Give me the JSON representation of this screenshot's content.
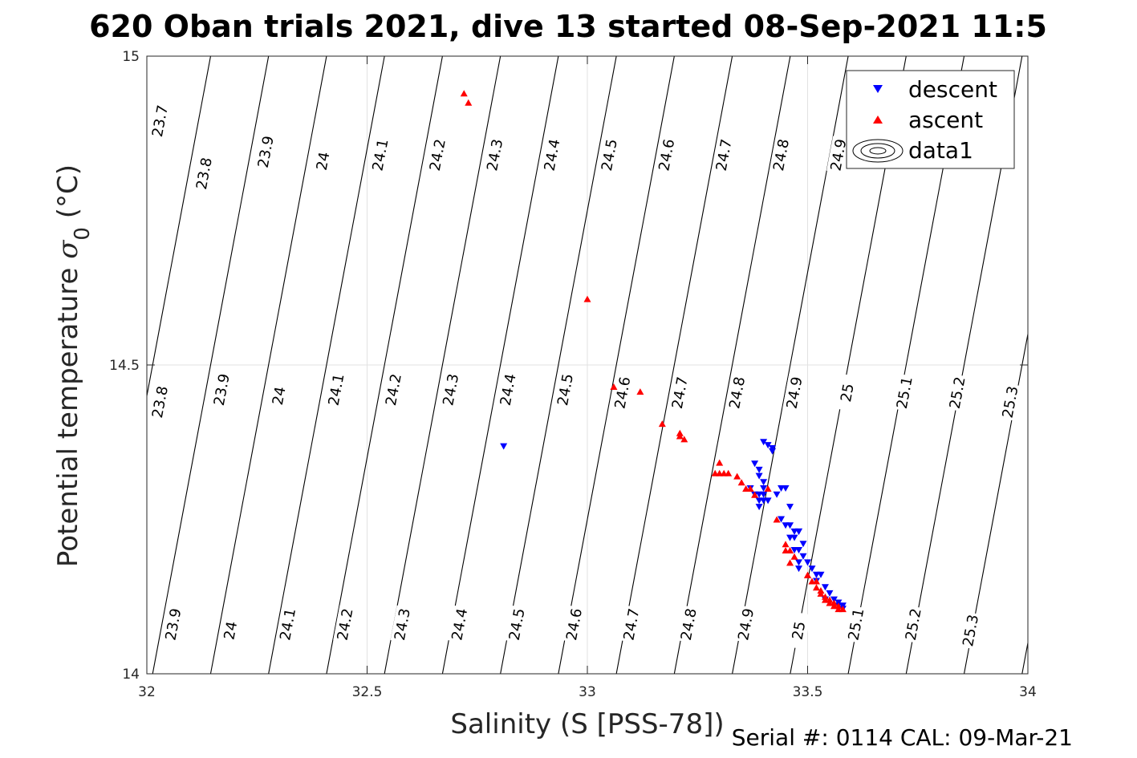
{
  "chart_data": {
    "type": "scatter",
    "title": "620 Oban trials 2021, dive 13 started 08-Sep-2021 11:5",
    "xlabel": "Salinity (S [PSS-78])",
    "ylabel_main": "Potential temperature ",
    "ylabel_sym": "σ",
    "ylabel_sub": "0",
    "ylabel_unit": " (°C)",
    "footer": "Serial #: 0114  CAL: 09-Mar-21",
    "xlim": [
      32,
      34
    ],
    "ylim": [
      14,
      15
    ],
    "xticks": [
      "32",
      "32.5",
      "33",
      "33.5",
      "34"
    ],
    "yticks": [
      "14",
      "14.5",
      "15"
    ],
    "grid": true,
    "legend": {
      "placement": "top-right",
      "entries": [
        {
          "label": "descent",
          "color": "#0000ff",
          "marker": "triangle-down"
        },
        {
          "label": "ascent",
          "color": "#ff0000",
          "marker": "triangle-up"
        },
        {
          "label": "data1",
          "color": "#000000",
          "marker": "contour"
        }
      ]
    },
    "contours": {
      "levels": [
        23.7,
        23.8,
        23.9,
        24,
        24.1,
        24.2,
        24.3,
        24.4,
        24.5,
        24.6,
        24.7,
        24.8,
        24.9,
        25,
        25.1,
        25.2,
        25.3
      ],
      "labels_top": [
        {
          "text": "23.7",
          "s": 32.03,
          "t": 14.895
        },
        {
          "text": "23.8",
          "s": 32.13,
          "t": 14.81
        },
        {
          "text": "23.9",
          "s": 32.27,
          "t": 14.845
        },
        {
          "text": "24",
          "s": 32.4,
          "t": 14.83
        },
        {
          "text": "24.1",
          "s": 32.53,
          "t": 14.84
        },
        {
          "text": "24.2",
          "s": 32.66,
          "t": 14.84
        },
        {
          "text": "24.3",
          "s": 32.79,
          "t": 14.84
        },
        {
          "text": "24.4",
          "s": 32.92,
          "t": 14.84
        },
        {
          "text": "24.5",
          "s": 33.05,
          "t": 14.84
        },
        {
          "text": "24.6",
          "s": 33.18,
          "t": 14.84
        },
        {
          "text": "24.7",
          "s": 33.31,
          "t": 14.84
        },
        {
          "text": "24.8",
          "s": 33.44,
          "t": 14.84
        },
        {
          "text": "24.9",
          "s": 33.57,
          "t": 14.84
        }
      ],
      "labels_mid": [
        {
          "text": "23.8",
          "s": 32.03,
          "t": 14.44
        },
        {
          "text": "23.9",
          "s": 32.17,
          "t": 14.46
        },
        {
          "text": "24",
          "s": 32.3,
          "t": 14.45
        },
        {
          "text": "24.1",
          "s": 32.43,
          "t": 14.46
        },
        {
          "text": "24.2",
          "s": 32.56,
          "t": 14.46
        },
        {
          "text": "24.3",
          "s": 32.69,
          "t": 14.46
        },
        {
          "text": "24.4",
          "s": 32.82,
          "t": 14.46
        },
        {
          "text": "24.5",
          "s": 32.95,
          "t": 14.46
        },
        {
          "text": "24.6",
          "s": 33.08,
          "t": 14.455
        },
        {
          "text": "24.7",
          "s": 33.21,
          "t": 14.455
        },
        {
          "text": "24.8",
          "s": 33.34,
          "t": 14.455
        },
        {
          "text": "24.9",
          "s": 33.47,
          "t": 14.455
        },
        {
          "text": "25",
          "s": 33.59,
          "t": 14.455
        },
        {
          "text": "25.1",
          "s": 33.72,
          "t": 14.455
        },
        {
          "text": "25.2",
          "s": 33.84,
          "t": 14.455
        },
        {
          "text": "25.3",
          "s": 33.96,
          "t": 14.44
        }
      ],
      "labels_bottom": [
        {
          "text": "23.9",
          "s": 32.06,
          "t": 14.08
        },
        {
          "text": "24",
          "s": 32.19,
          "t": 14.07
        },
        {
          "text": "24.1",
          "s": 32.32,
          "t": 14.08
        },
        {
          "text": "24.2",
          "s": 32.45,
          "t": 14.08
        },
        {
          "text": "24.3",
          "s": 32.58,
          "t": 14.08
        },
        {
          "text": "24.4",
          "s": 32.71,
          "t": 14.08
        },
        {
          "text": "24.5",
          "s": 32.84,
          "t": 14.08
        },
        {
          "text": "24.6",
          "s": 32.97,
          "t": 14.08
        },
        {
          "text": "24.7",
          "s": 33.1,
          "t": 14.08
        },
        {
          "text": "24.8",
          "s": 33.23,
          "t": 14.08
        },
        {
          "text": "24.9",
          "s": 33.36,
          "t": 14.08
        },
        {
          "text": "25",
          "s": 33.48,
          "t": 14.07
        },
        {
          "text": "25.1",
          "s": 33.61,
          "t": 14.08
        },
        {
          "text": "25.2",
          "s": 33.74,
          "t": 14.08
        },
        {
          "text": "25.3",
          "s": 33.87,
          "t": 14.07
        }
      ]
    },
    "series": [
      {
        "name": "descent",
        "color": "#0000ff",
        "marker": "triangle-down",
        "x": [
          32.81,
          33.4,
          33.41,
          33.42,
          33.42,
          33.38,
          33.39,
          33.39,
          33.4,
          33.4,
          33.4,
          33.4,
          33.41,
          33.38,
          33.37,
          33.39,
          33.39,
          33.39,
          33.43,
          33.44,
          33.45,
          33.46,
          33.44,
          33.45,
          33.46,
          33.47,
          33.48,
          33.46,
          33.47,
          33.48,
          33.49,
          33.48,
          33.47,
          33.49,
          33.48,
          33.48,
          33.5,
          33.51,
          33.52,
          33.53,
          33.52,
          33.54,
          33.55,
          33.54,
          33.56,
          33.57,
          33.57,
          33.58,
          33.58
        ],
        "y": [
          14.368,
          14.375,
          14.37,
          14.36,
          14.365,
          14.34,
          14.33,
          14.32,
          14.31,
          14.3,
          14.29,
          14.28,
          14.28,
          14.29,
          14.3,
          14.29,
          14.28,
          14.27,
          14.29,
          14.3,
          14.3,
          14.27,
          14.25,
          14.24,
          14.24,
          14.23,
          14.23,
          14.22,
          14.22,
          14.23,
          14.21,
          14.2,
          14.2,
          14.19,
          14.18,
          14.17,
          14.18,
          14.17,
          14.16,
          14.16,
          14.15,
          14.14,
          14.13,
          14.12,
          14.12,
          14.115,
          14.11,
          14.11,
          14.105
        ]
      },
      {
        "name": "ascent",
        "color": "#ff0000",
        "marker": "triangle-up",
        "x": [
          32.72,
          32.73,
          33.0,
          33.06,
          33.12,
          33.17,
          33.21,
          33.21,
          33.22,
          33.3,
          33.29,
          33.3,
          33.31,
          33.32,
          33.34,
          33.35,
          33.37,
          33.36,
          33.38,
          33.41,
          33.43,
          33.45,
          33.45,
          33.46,
          33.47,
          33.46,
          33.5,
          33.5,
          33.51,
          33.52,
          33.52,
          33.53,
          33.53,
          33.54,
          33.54,
          33.55,
          33.55,
          33.56,
          33.56,
          33.57,
          33.57,
          33.58
        ],
        "y": [
          14.94,
          14.925,
          14.607,
          14.465,
          14.457,
          14.405,
          14.39,
          14.385,
          14.38,
          14.342,
          14.325,
          14.325,
          14.325,
          14.325,
          14.32,
          14.31,
          14.3,
          14.3,
          14.29,
          14.3,
          14.25,
          14.21,
          14.2,
          14.2,
          14.19,
          14.18,
          14.16,
          14.16,
          14.15,
          14.15,
          14.14,
          14.135,
          14.13,
          14.125,
          14.12,
          14.12,
          14.115,
          14.115,
          14.11,
          14.11,
          14.105,
          14.105
        ]
      }
    ]
  }
}
